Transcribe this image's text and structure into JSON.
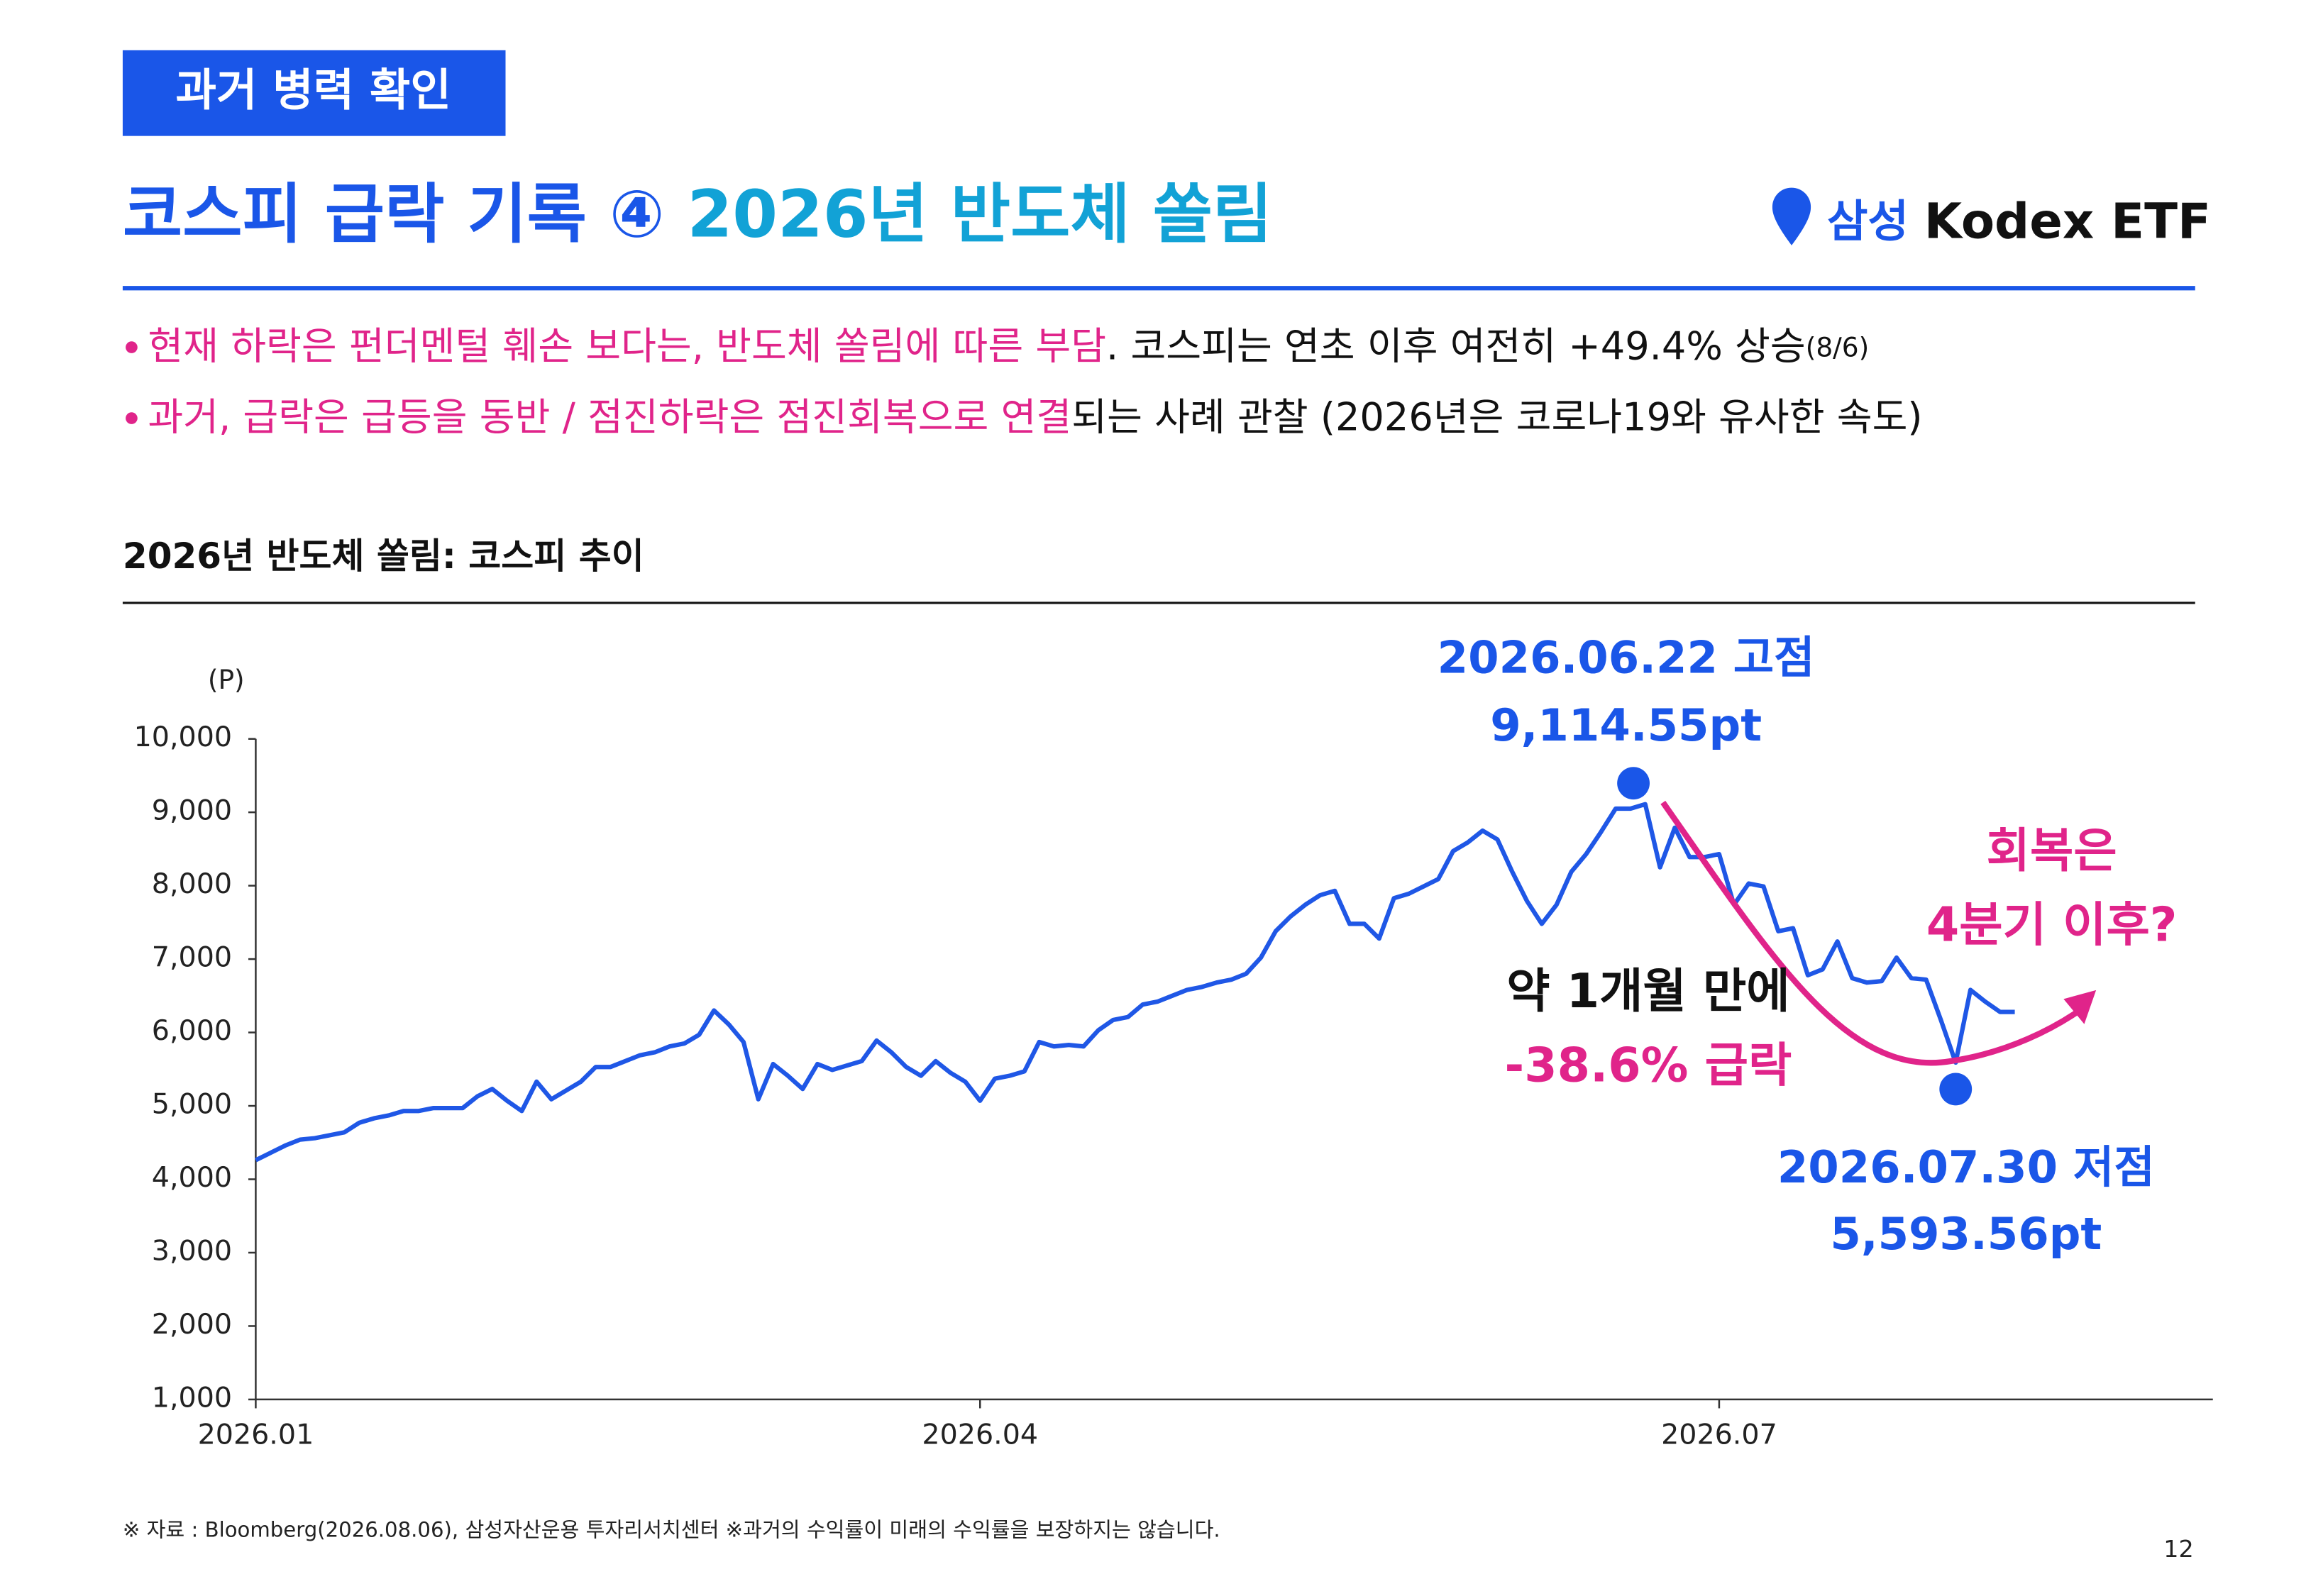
{
  "header": {
    "tag": "과거 병력 확인",
    "title_main": "코스피 급락 기록 ④",
    "title_sub": "2026년 반도체 쏠림",
    "logo_brand": "삼성",
    "logo_product": "Kodex ETF"
  },
  "bullets": [
    {
      "highlight": "현재 하락은 펀더멘털 훼손 보다는, 반도체 쏠림에 따른 부담",
      "text": ". 코스피는 연초 이후 여전히 +49.4% 상승",
      "note": "(8/6)"
    },
    {
      "highlight": "과거, 급락은 급등을 동반 / 점진하락은 점진회복으로 연결",
      "text": "되는 사례 관찰 (2026년은 코로나19와 유사한 속도)"
    }
  ],
  "chart_data": {
    "type": "line",
    "title": "2026년 반도체 쏠림: 코스피 추이",
    "y_unit": "(P)",
    "categories": [
      "2026.01",
      null,
      null,
      null,
      null,
      null,
      null,
      null,
      null,
      null,
      null,
      null,
      null,
      null,
      null,
      null,
      null,
      null,
      null,
      null,
      null,
      null,
      null,
      null,
      null,
      null,
      null,
      null,
      null,
      null,
      null,
      null,
      null,
      null,
      null,
      null,
      null,
      null,
      null,
      null,
      null,
      null,
      null,
      null,
      null,
      null,
      null,
      null,
      null,
      "2026.04",
      null,
      null,
      null,
      null,
      null,
      null,
      null,
      null,
      null,
      null,
      null,
      null,
      null,
      null,
      null,
      null,
      null,
      null,
      null,
      null,
      null,
      null,
      null,
      null,
      null,
      null,
      null,
      null,
      null,
      null,
      null,
      null,
      null,
      null,
      null,
      null,
      null,
      null,
      null,
      null,
      null,
      null,
      null,
      null,
      null,
      null,
      null,
      null,
      null,
      "2026.07",
      null,
      null,
      null,
      null,
      null,
      null,
      null,
      null,
      null,
      null,
      null,
      null,
      null,
      null,
      null,
      null,
      null,
      null,
      null,
      null
    ],
    "series": [
      {
        "name": "코스피",
        "color": "#1f57e6",
        "values": [
          4260,
          4360,
          4460,
          4540,
          4560,
          4600,
          4640,
          4770,
          4830,
          4870,
          4930,
          4930,
          4970,
          4970,
          4970,
          5130,
          5230,
          5070,
          4930,
          5330,
          5090,
          5210,
          5330,
          5530,
          5530,
          5610,
          5690,
          5730,
          5810,
          5850,
          5970,
          6300,
          6110,
          5870,
          5090,
          5570,
          5410,
          5230,
          5570,
          5490,
          5550,
          5610,
          5890,
          5730,
          5530,
          5410,
          5610,
          5450,
          5330,
          5070,
          5370,
          5410,
          5470,
          5870,
          5810,
          5830,
          5810,
          6030,
          6170,
          6210,
          6380,
          6420,
          6500,
          6580,
          6620,
          6680,
          6720,
          6800,
          7020,
          7380,
          7580,
          7740,
          7870,
          7930,
          7480,
          7480,
          7280,
          7830,
          7890,
          7990,
          8090,
          8470,
          8590,
          8750,
          8630,
          8190,
          7790,
          7480,
          7740,
          8190,
          8430,
          8730,
          9050,
          9050,
          9110,
          8250,
          8790,
          8390,
          8390,
          8430,
          7740,
          8030,
          7990,
          7380,
          7420,
          6780,
          6860,
          7240,
          6740,
          6680,
          6700,
          7020,
          6740,
          6720,
          6170,
          5590,
          6580,
          6420,
          6280,
          6280
        ]
      }
    ],
    "ylim": [
      1000,
      10000
    ],
    "yticks": [
      {
        "value": 1000,
        "label": "1,000"
      },
      {
        "value": 2000,
        "label": "2,000"
      },
      {
        "value": 3000,
        "label": "3,000"
      },
      {
        "value": 4000,
        "label": "4,000"
      },
      {
        "value": 5000,
        "label": "5,000"
      },
      {
        "value": 6000,
        "label": "6,000"
      },
      {
        "value": 7000,
        "label": "7,000"
      },
      {
        "value": 8000,
        "label": "8,000"
      },
      {
        "value": 9000,
        "label": "9,000"
      },
      {
        "value": 10000,
        "label": "10,000"
      }
    ],
    "annotations": {
      "peak_date": "2026.06.22 고점",
      "peak_value": "9,114.55pt",
      "low_date": "2026.07.30 저점",
      "low_value": "5,593.56pt",
      "drop_period": "약 1개월 만에",
      "drop_pct": "-38.6% 급락",
      "recovery_1": "회복은",
      "recovery_2": "4분기 이후?"
    }
  },
  "footnote": "※ 자료 : Bloomberg(2026.08.06), 삼성자산운용 투자리서치센터 ※과거의 수익률이 미래의 수익률을 보장하지는 않습니다.",
  "page_number": "12"
}
